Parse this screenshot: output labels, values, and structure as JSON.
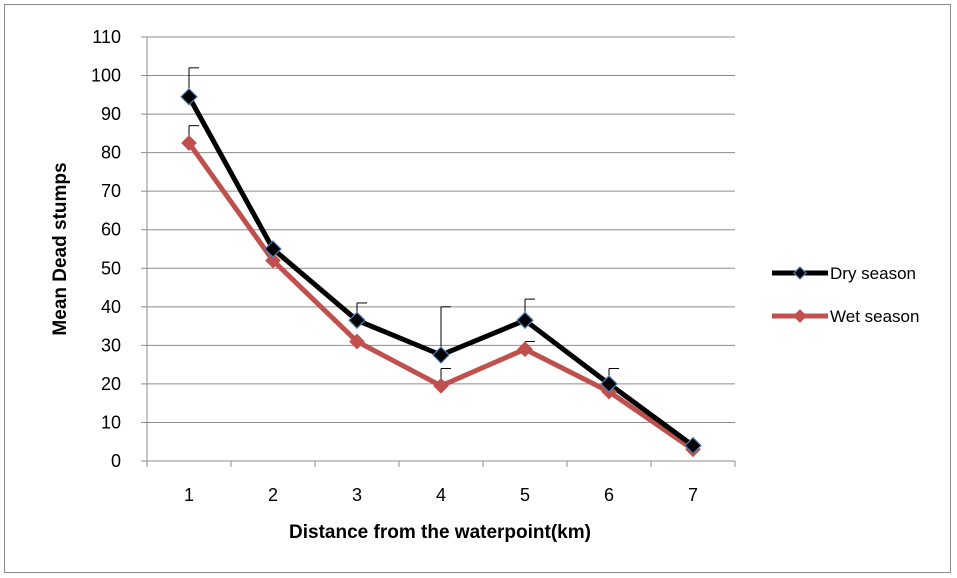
{
  "chart_data": {
    "type": "line",
    "title": "",
    "xlabel": "Distance from the waterpoint(km)",
    "ylabel": "Mean Dead stumps",
    "categories": [
      "1",
      "2",
      "3",
      "4",
      "5",
      "6",
      "7"
    ],
    "ylim": [
      0,
      110
    ],
    "yticks": [
      "0",
      "10",
      "20",
      "30",
      "40",
      "50",
      "60",
      "70",
      "80",
      "90",
      "100",
      "110"
    ],
    "grid": true,
    "legend_position": "right",
    "series": [
      {
        "name": "Dry season",
        "color": "#000000",
        "marker_fill": "#000000",
        "marker_edge": "#4f81bd",
        "values": [
          94.5,
          55,
          36.5,
          27.5,
          36.5,
          20,
          4
        ],
        "error_upper": [
          102,
          null,
          41,
          40,
          42,
          24,
          null
        ]
      },
      {
        "name": "Wet season",
        "color": "#c0504d",
        "marker_fill": "#c0504d",
        "marker_edge": "#c0504d",
        "values": [
          82.5,
          52,
          31,
          19.5,
          29,
          18,
          3
        ],
        "error_upper": [
          87,
          null,
          null,
          24,
          31,
          null,
          null
        ]
      }
    ]
  }
}
